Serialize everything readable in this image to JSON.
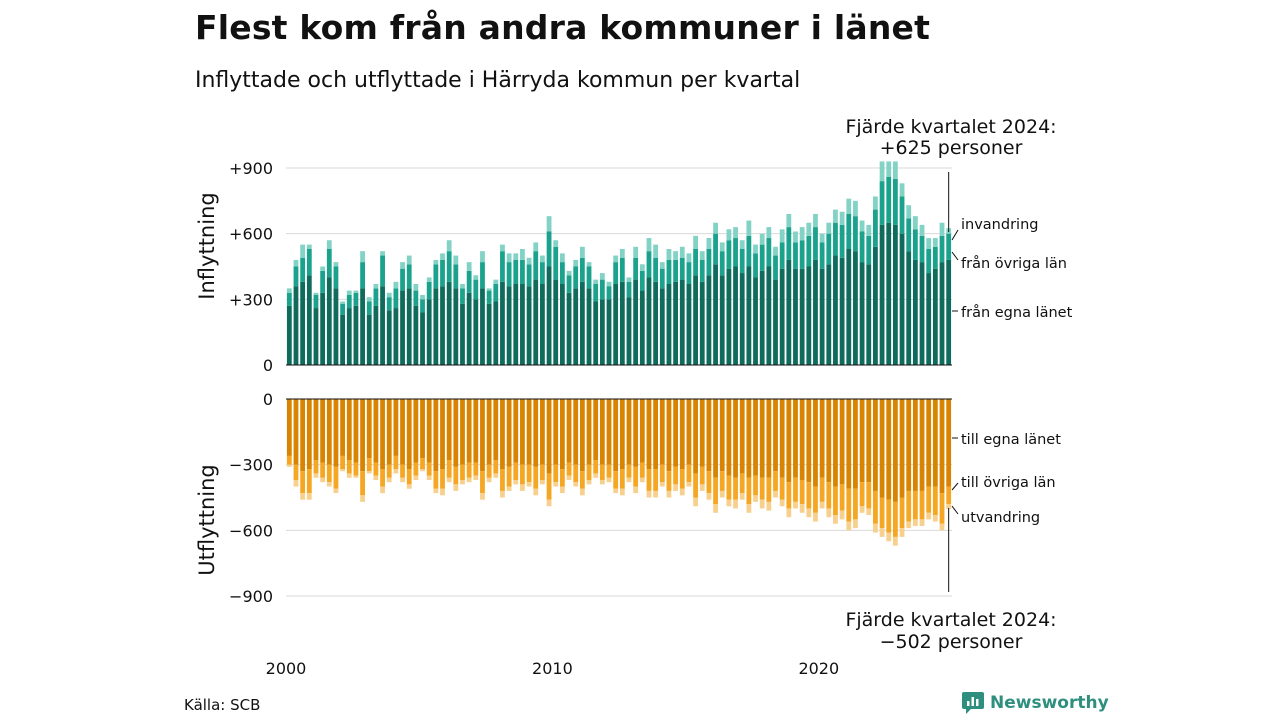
{
  "title": "Flest kom från andra kommuner i länet",
  "subtitle": "Inflyttade och utflyttade i Härryda kommun per kvartal",
  "source": "Källa: SCB",
  "brand": "Newsworthy",
  "colors": {
    "in_own": "#0f6b5c",
    "in_other": "#1ba28d",
    "in_foreign": "#82d3c6",
    "out_own": "#d88400",
    "out_other": "#f5a623",
    "out_foreign": "#f8d08e",
    "brand": "#2e8f7e"
  },
  "chart_data": {
    "type": "bar",
    "x": {
      "start_year": 2000,
      "quarters": 100,
      "tick_labels": [
        "2000",
        "2010",
        "2020"
      ]
    },
    "panels": {
      "top": {
        "ylabel": "Inflyttning",
        "ylim": [
          0,
          900
        ],
        "tick_labels": [
          "0",
          "+300",
          "+600",
          "+900"
        ],
        "tick_values": [
          0,
          300,
          600,
          900
        ],
        "annotation_line1": "Fjärde kvartalet 2024:",
        "annotation_line2": "+625 personer",
        "series_labels": [
          "invandring",
          "från övriga län",
          "från egna länet"
        ]
      },
      "bottom": {
        "ylabel": "Utflyttning",
        "ylim": [
          -900,
          0
        ],
        "tick_labels": [
          "0",
          "−300",
          "−600",
          "−900"
        ],
        "tick_values": [
          0,
          -300,
          -600,
          -900
        ],
        "annotation_line1": "Fjärde kvartalet 2024:",
        "annotation_line2": "−502 personer",
        "series_labels": [
          "till egna länet",
          "till övriga län",
          "utvandring"
        ]
      }
    },
    "inflow": {
      "own": [
        270,
        360,
        380,
        410,
        260,
        330,
        400,
        350,
        230,
        260,
        270,
        350,
        230,
        270,
        360,
        250,
        260,
        340,
        350,
        270,
        240,
        300,
        350,
        360,
        380,
        350,
        280,
        330,
        300,
        350,
        280,
        290,
        380,
        360,
        370,
        370,
        360,
        390,
        370,
        450,
        390,
        370,
        330,
        350,
        380,
        350,
        290,
        300,
        300,
        370,
        380,
        310,
        390,
        340,
        400,
        380,
        350,
        370,
        380,
        390,
        370,
        410,
        380,
        410,
        460,
        410,
        440,
        450,
        420,
        450,
        400,
        430,
        450,
        390,
        440,
        480,
        440,
        440,
        450,
        480,
        440,
        460,
        500,
        490,
        530,
        520,
        470,
        460,
        540,
        640,
        650,
        640,
        600,
        520,
        480,
        470,
        420,
        440,
        470,
        480
      ],
      "other": [
        60,
        90,
        110,
        120,
        60,
        100,
        130,
        100,
        50,
        60,
        60,
        120,
        60,
        80,
        140,
        60,
        90,
        100,
        110,
        70,
        60,
        80,
        110,
        120,
        140,
        110,
        70,
        100,
        90,
        120,
        60,
        80,
        140,
        110,
        110,
        110,
        100,
        130,
        100,
        160,
        150,
        100,
        80,
        100,
        110,
        100,
        80,
        90,
        60,
        100,
        110,
        70,
        100,
        90,
        120,
        110,
        90,
        110,
        100,
        100,
        100,
        120,
        100,
        120,
        140,
        110,
        130,
        130,
        110,
        140,
        110,
        120,
        130,
        110,
        120,
        150,
        120,
        130,
        140,
        150,
        120,
        140,
        150,
        150,
        160,
        160,
        140,
        130,
        170,
        200,
        210,
        210,
        170,
        150,
        140,
        120,
        110,
        100,
        120,
        120
      ],
      "foreign": [
        20,
        30,
        60,
        20,
        10,
        20,
        40,
        20,
        10,
        20,
        10,
        50,
        20,
        20,
        20,
        20,
        30,
        30,
        40,
        30,
        20,
        20,
        20,
        30,
        50,
        40,
        20,
        40,
        20,
        50,
        10,
        20,
        30,
        40,
        30,
        50,
        30,
        40,
        30,
        70,
        30,
        40,
        20,
        30,
        50,
        20,
        20,
        30,
        20,
        30,
        40,
        20,
        50,
        30,
        60,
        60,
        30,
        50,
        40,
        50,
        40,
        60,
        40,
        50,
        50,
        40,
        50,
        50,
        40,
        70,
        40,
        50,
        50,
        40,
        60,
        60,
        50,
        60,
        60,
        60,
        40,
        50,
        60,
        60,
        70,
        70,
        50,
        50,
        60,
        90,
        70,
        80,
        60,
        60,
        60,
        50,
        50,
        40,
        60,
        25
      ]
    },
    "outflow": {
      "own": [
        -260,
        -300,
        -330,
        -320,
        -280,
        -290,
        -300,
        -310,
        -260,
        -280,
        -290,
        -330,
        -270,
        -290,
        -320,
        -300,
        -260,
        -300,
        -320,
        -290,
        -270,
        -290,
        -330,
        -320,
        -280,
        -310,
        -300,
        -290,
        -290,
        -330,
        -300,
        -280,
        -320,
        -310,
        -290,
        -300,
        -300,
        -310,
        -300,
        -340,
        -300,
        -320,
        -290,
        -300,
        -330,
        -300,
        -280,
        -300,
        -300,
        -330,
        -320,
        -300,
        -310,
        -290,
        -320,
        -320,
        -300,
        -330,
        -310,
        -320,
        -300,
        -340,
        -310,
        -330,
        -360,
        -330,
        -350,
        -360,
        -340,
        -360,
        -350,
        -360,
        -360,
        -330,
        -360,
        -380,
        -360,
        -370,
        -380,
        -400,
        -360,
        -380,
        -400,
        -390,
        -410,
        -410,
        -380,
        -380,
        -420,
        -450,
        -460,
        -470,
        -450,
        -420,
        -420,
        -420,
        -400,
        -400,
        -430,
        -400
      ],
      "other": [
        -40,
        -70,
        -100,
        -110,
        -60,
        -70,
        -80,
        -100,
        -60,
        -60,
        -60,
        -110,
        -60,
        -60,
        -80,
        -60,
        -60,
        -60,
        -70,
        -60,
        -50,
        -60,
        -80,
        -90,
        -80,
        -80,
        -70,
        -70,
        -60,
        -100,
        -60,
        -60,
        -100,
        -90,
        -80,
        -90,
        -80,
        -100,
        -70,
        -120,
        -80,
        -80,
        -60,
        -80,
        -80,
        -70,
        -60,
        -70,
        -60,
        -80,
        -90,
        -60,
        -90,
        -70,
        -100,
        -100,
        -80,
        -90,
        -80,
        -90,
        -80,
        -110,
        -80,
        -100,
        -120,
        -90,
        -110,
        -100,
        -90,
        -120,
        -90,
        -100,
        -110,
        -90,
        -100,
        -120,
        -110,
        -110,
        -120,
        -120,
        -110,
        -120,
        -130,
        -120,
        -150,
        -140,
        -110,
        -120,
        -150,
        -140,
        -150,
        -160,
        -140,
        -140,
        -130,
        -130,
        -120,
        -130,
        -140,
        -80
      ],
      "foreign": [
        -10,
        -30,
        -30,
        -30,
        -20,
        -20,
        -20,
        -20,
        -10,
        -20,
        -10,
        -30,
        -10,
        -20,
        -30,
        -20,
        -20,
        -20,
        -20,
        -20,
        -10,
        -20,
        -20,
        -30,
        -20,
        -30,
        -20,
        -20,
        -20,
        -30,
        -20,
        -20,
        -30,
        -20,
        -20,
        -30,
        -20,
        -30,
        -20,
        -30,
        -20,
        -30,
        -20,
        -20,
        -30,
        -20,
        -20,
        -20,
        -20,
        -20,
        -30,
        -20,
        -30,
        -20,
        -30,
        -30,
        -20,
        -30,
        -30,
        -30,
        -20,
        -40,
        -30,
        -30,
        -40,
        -30,
        -30,
        -40,
        -30,
        -40,
        -30,
        -40,
        -40,
        -30,
        -30,
        -40,
        -30,
        -40,
        -40,
        -40,
        -30,
        -40,
        -40,
        -40,
        -40,
        -40,
        -30,
        -30,
        -40,
        -40,
        -40,
        -40,
        -40,
        -30,
        -30,
        -30,
        -30,
        -30,
        -30,
        -22
      ]
    }
  }
}
